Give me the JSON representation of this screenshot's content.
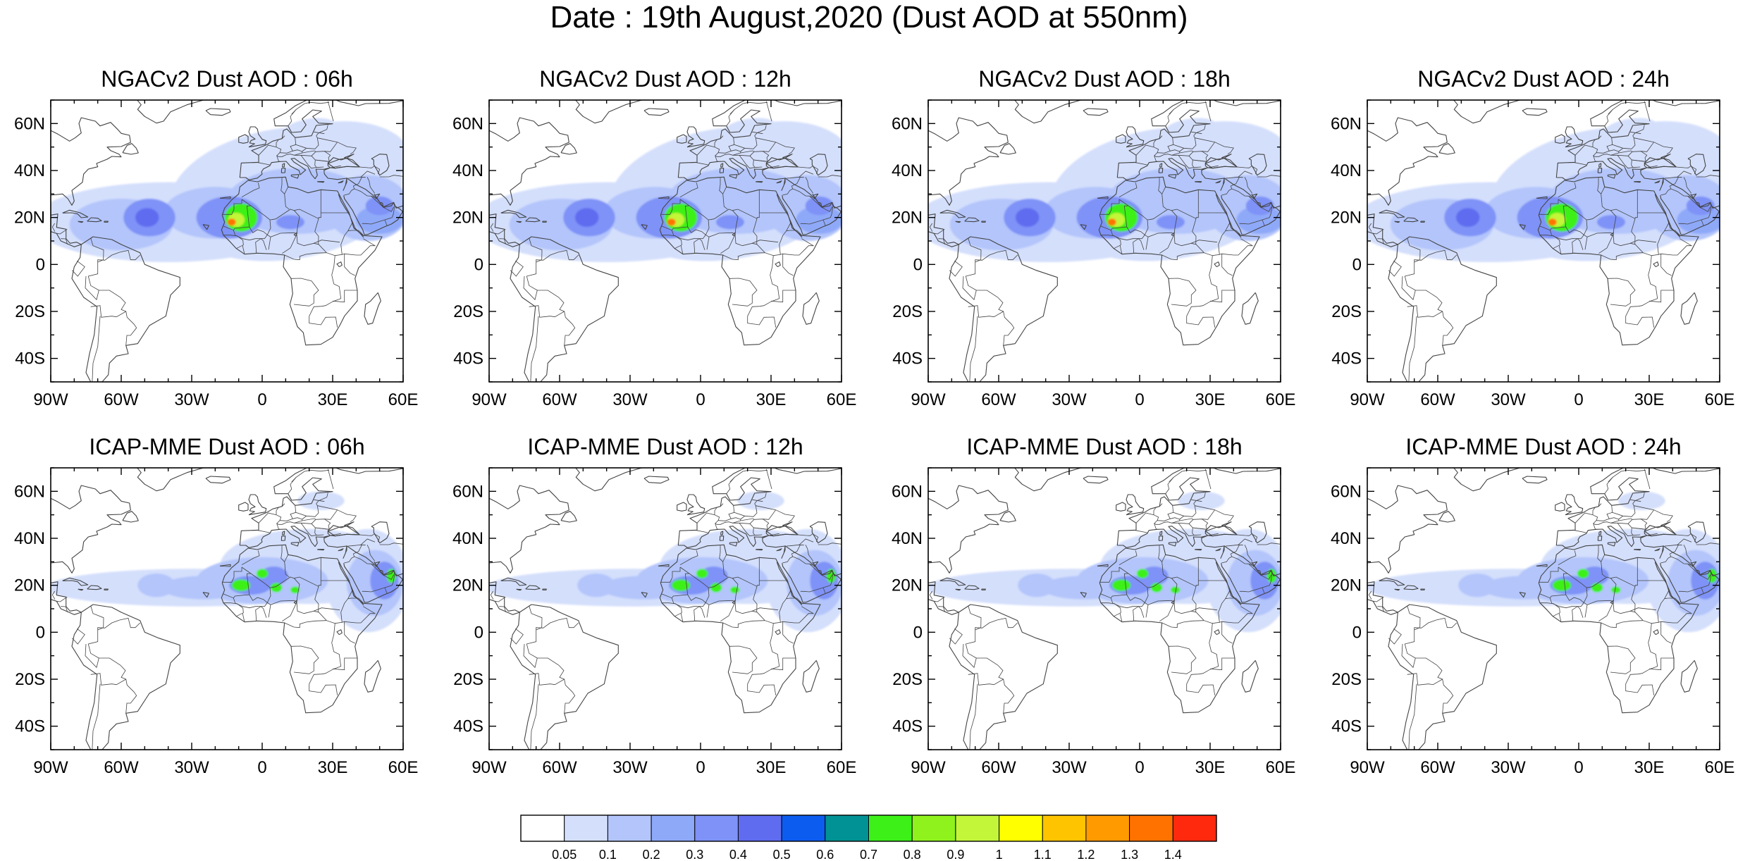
{
  "figure": {
    "title": "Date : 19th August,2020 (Dust AOD at 550nm)"
  },
  "panels": [
    {
      "title": "NGACv2 Dust AOD : 06h",
      "model": "NGACv2",
      "hour": "06h"
    },
    {
      "title": "NGACv2 Dust AOD : 12h",
      "model": "NGACv2",
      "hour": "12h"
    },
    {
      "title": "NGACv2 Dust AOD : 18h",
      "model": "NGACv2",
      "hour": "18h"
    },
    {
      "title": "NGACv2 Dust AOD : 24h",
      "model": "NGACv2",
      "hour": "24h"
    },
    {
      "title": "ICAP-MME Dust AOD : 06h",
      "model": "ICAP-MME",
      "hour": "06h"
    },
    {
      "title": "ICAP-MME Dust AOD : 12h",
      "model": "ICAP-MME",
      "hour": "12h"
    },
    {
      "title": "ICAP-MME Dust AOD : 18h",
      "model": "ICAP-MME",
      "hour": "18h"
    },
    {
      "title": "ICAP-MME Dust AOD : 24h",
      "model": "ICAP-MME",
      "hour": "24h"
    }
  ],
  "map_axes": {
    "lon_range": [
      -90,
      60
    ],
    "lat_range": [
      -50,
      70
    ],
    "lon_ticks": [
      {
        "value": -90,
        "label": "90W"
      },
      {
        "value": -60,
        "label": "60W"
      },
      {
        "value": -30,
        "label": "30W"
      },
      {
        "value": 0,
        "label": "0"
      },
      {
        "value": 30,
        "label": "30E"
      },
      {
        "value": 60,
        "label": "60E"
      }
    ],
    "lat_ticks": [
      {
        "value": 60,
        "label": "60N"
      },
      {
        "value": 40,
        "label": "40N"
      },
      {
        "value": 20,
        "label": "20N"
      },
      {
        "value": 0,
        "label": "0"
      },
      {
        "value": -20,
        "label": "20S"
      },
      {
        "value": -40,
        "label": "40S"
      }
    ]
  },
  "colorbar": {
    "labels": [
      "0.05",
      "0.1",
      "0.2",
      "0.3",
      "0.4",
      "0.5",
      "0.6",
      "0.7",
      "0.8",
      "0.9",
      "1",
      "1.1",
      "1.2",
      "1.3",
      "1.4"
    ],
    "colors": [
      "#ffffff",
      "#d4dffc",
      "#b3c5fb",
      "#8fa9f9",
      "#7e92f7",
      "#5f6cf0",
      "#0c5cf0",
      "#009294",
      "#3cf018",
      "#90f21c",
      "#c3f539",
      "#ffff00",
      "#ffc400",
      "#ff9b00",
      "#ff7200",
      "#ff2a0e"
    ]
  },
  "colors": {
    "coast": "#444444",
    "frame": "#000000"
  }
}
